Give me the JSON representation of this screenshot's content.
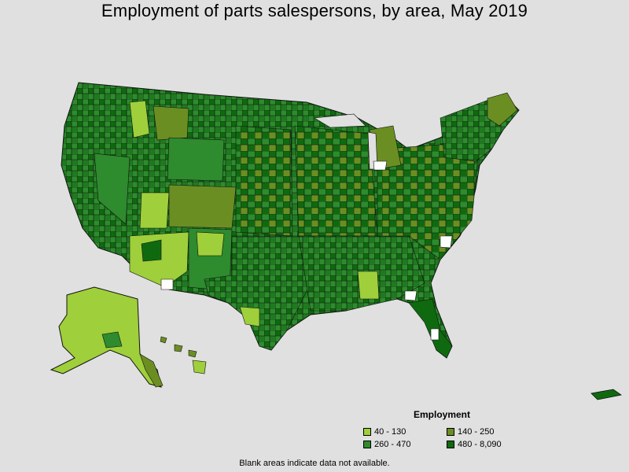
{
  "title": "Employment of parts salespersons, by area, May 2019",
  "legend": {
    "title": "Employment",
    "items": [
      {
        "label": "40 - 130",
        "color": "#9fcf3a"
      },
      {
        "label": "140 - 250",
        "color": "#6b8e23"
      },
      {
        "label": "260 - 470",
        "color": "#2e8b2e"
      },
      {
        "label": "480 - 8,090",
        "color": "#0f6a0f"
      }
    ]
  },
  "footnote": "Blank areas indicate data not available.",
  "colors": {
    "background": "#e0e0e0",
    "no_data": "#ffffff",
    "border": "#111111"
  }
}
